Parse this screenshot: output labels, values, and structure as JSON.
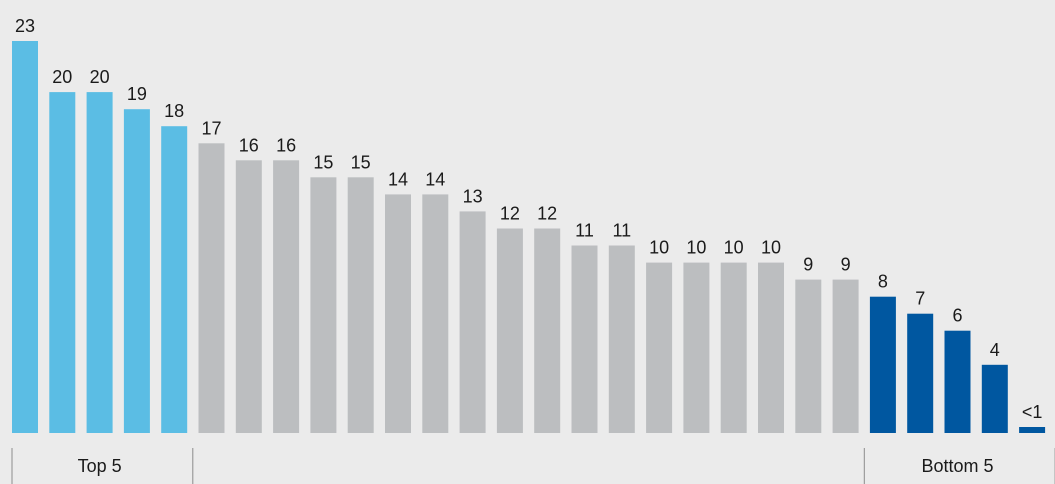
{
  "chart_data": {
    "type": "bar",
    "values": [
      23,
      20,
      20,
      19,
      18,
      17,
      16,
      16,
      15,
      15,
      14,
      14,
      13,
      12,
      12,
      11,
      11,
      10,
      10,
      10,
      10,
      9,
      9,
      8,
      7,
      6,
      4,
      0.3
    ],
    "data_labels": [
      "23",
      "20",
      "20",
      "19",
      "18",
      "17",
      "16",
      "16",
      "15",
      "15",
      "14",
      "14",
      "13",
      "12",
      "12",
      "11",
      "11",
      "10",
      "10",
      "10",
      "10",
      "9",
      "9",
      "8",
      "7",
      "6",
      "4",
      "<1"
    ],
    "ylim": [
      0,
      23
    ],
    "grid": false,
    "groups": [
      {
        "label": "Top 5",
        "count": 5,
        "color": "#5bbde4"
      },
      {
        "label": "",
        "count": 18,
        "color": "#bcbec0"
      },
      {
        "label": "Bottom 5",
        "count": 5,
        "color": "#0057a0"
      }
    ]
  }
}
